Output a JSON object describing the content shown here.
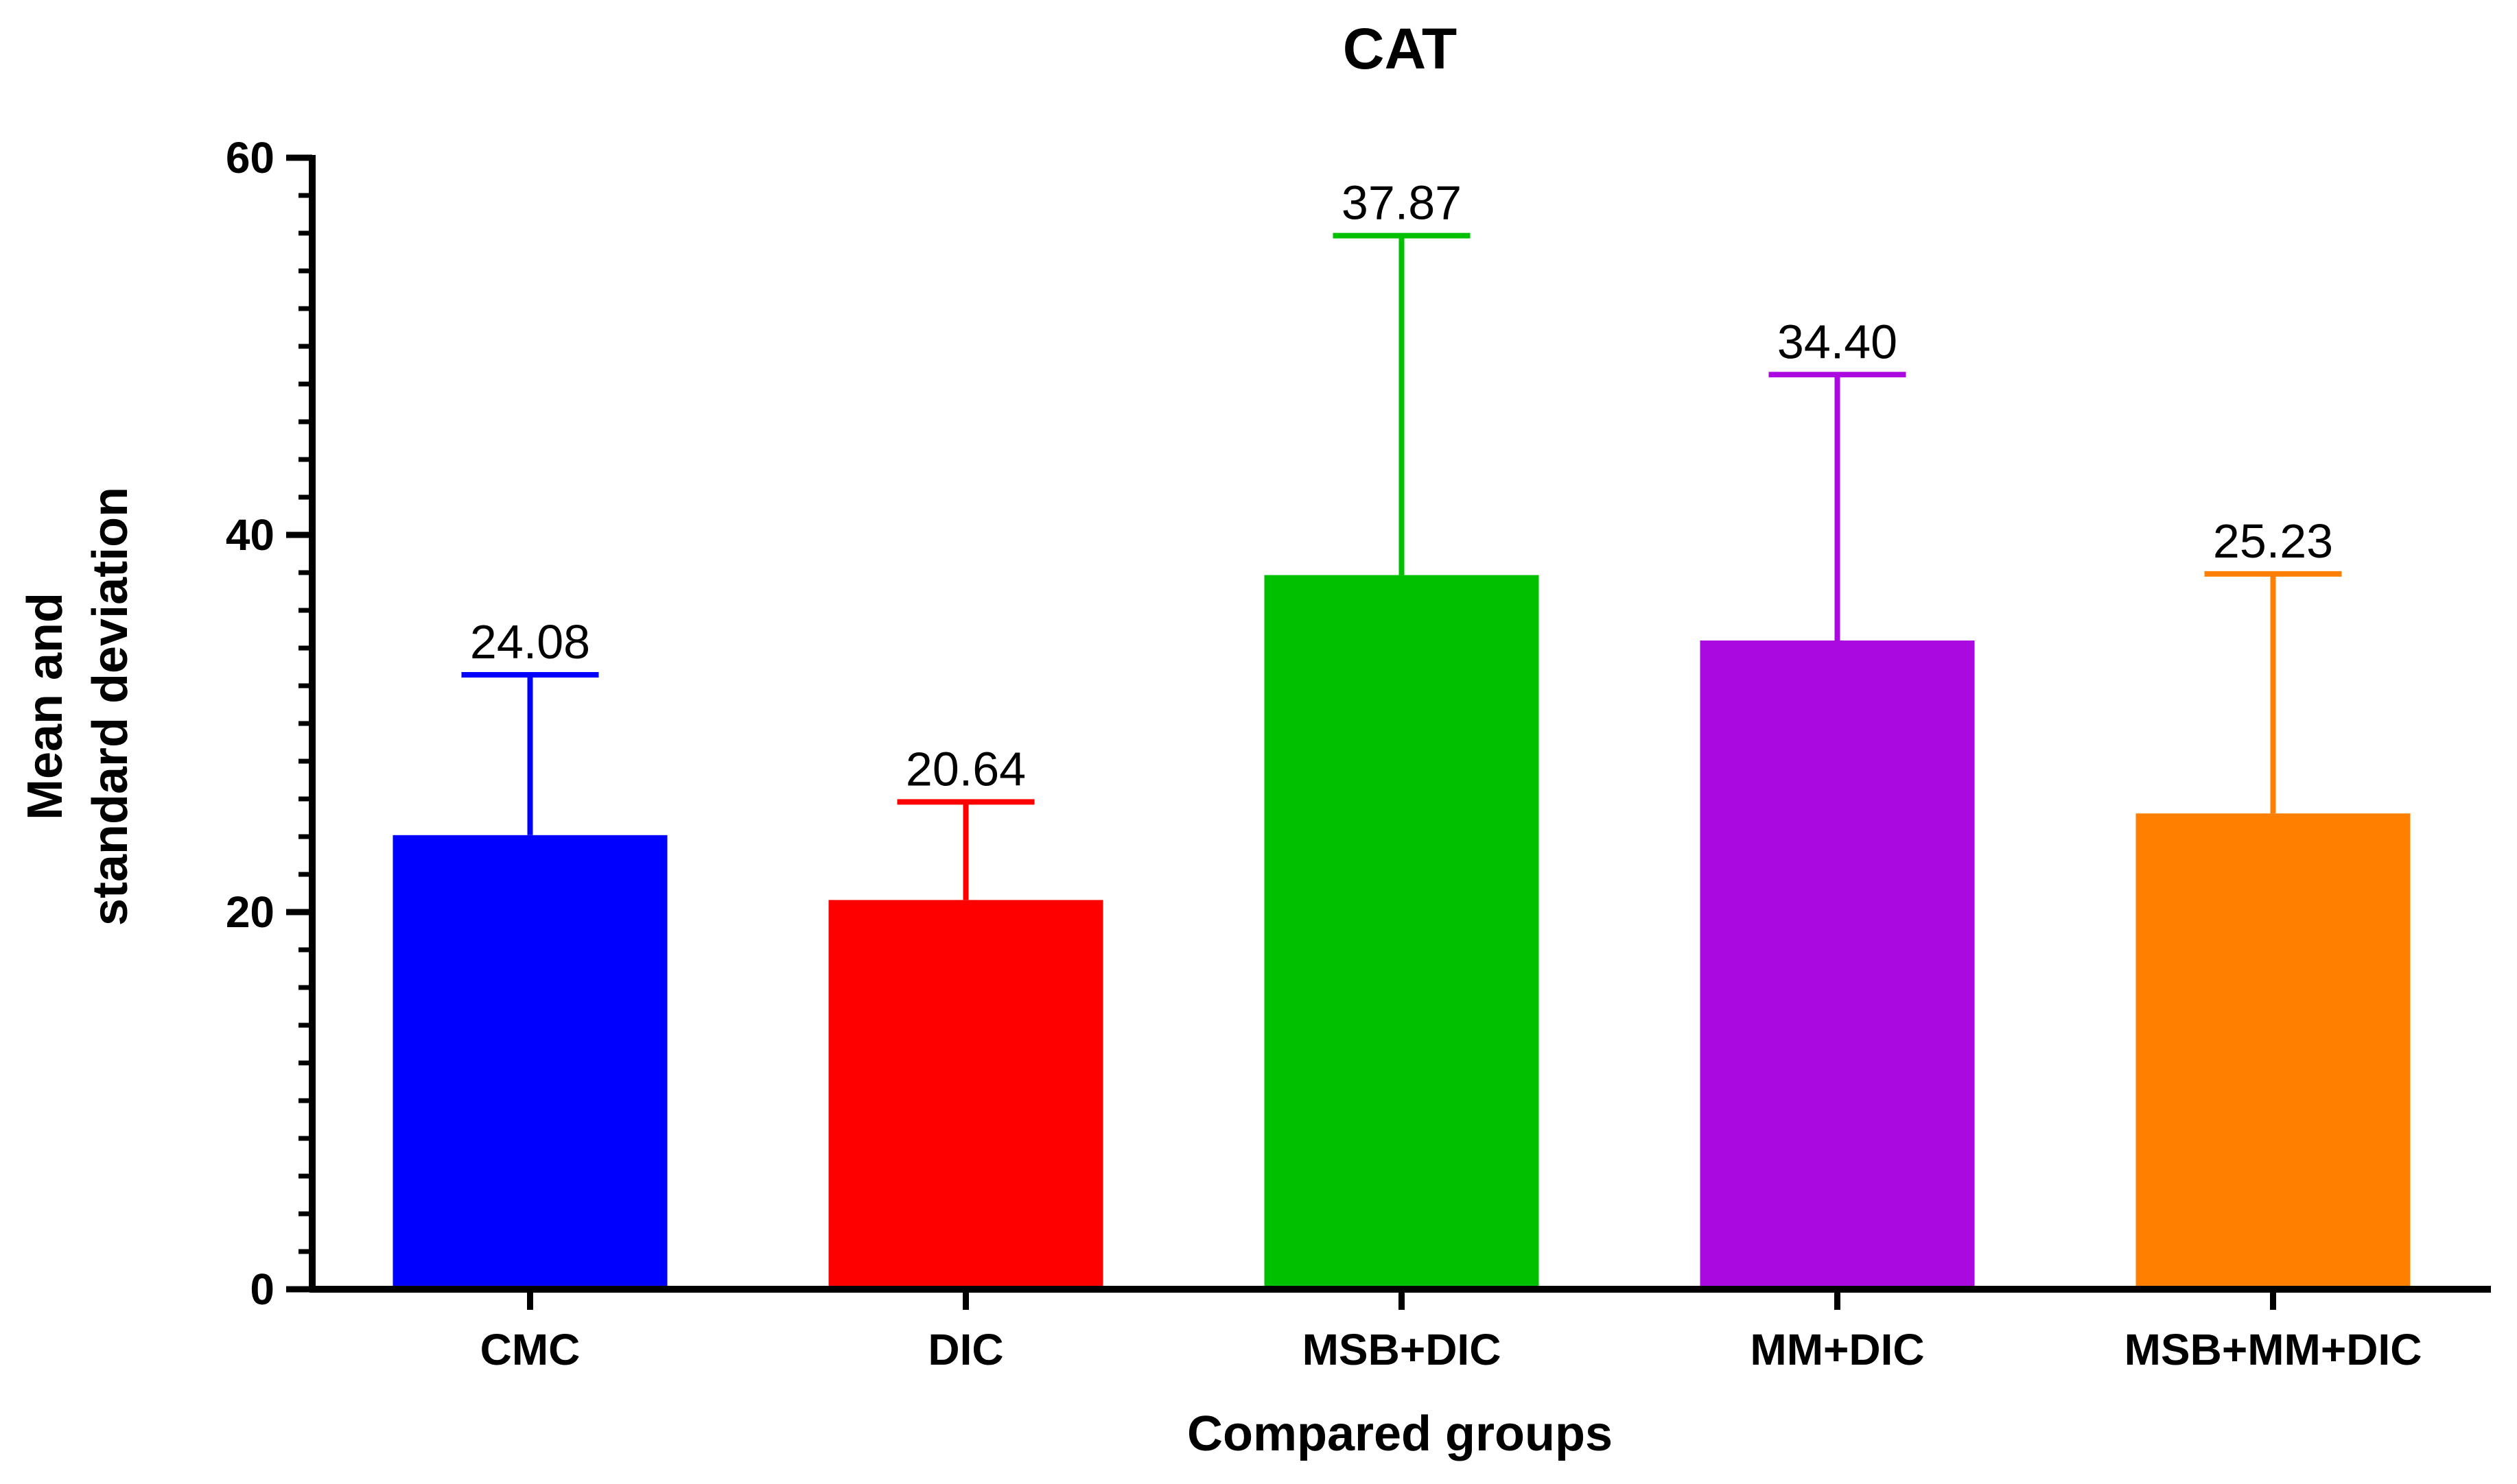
{
  "chart_data": {
    "type": "bar",
    "title": "CAT",
    "xlabel": "Compared groups",
    "ylabel_lines": [
      "Mean and",
      "standard deviation"
    ],
    "categories": [
      "CMC",
      "DIC",
      "MSB+DIC",
      "MM+DIC",
      "MSB+MM+DIC"
    ],
    "values": [
      24.08,
      20.64,
      37.87,
      34.4,
      25.23
    ],
    "value_labels": [
      "24.08",
      "20.64",
      "37.87",
      "34.40",
      "25.23"
    ],
    "sd": [
      8.5,
      5.2,
      18.0,
      14.1,
      12.7
    ],
    "colors": [
      "#0000ff",
      "#ff0000",
      "#00c000",
      "#aa0ae0",
      "#ff8000"
    ],
    "ylim": [
      0,
      60
    ],
    "yticks": [
      0,
      20,
      40,
      60
    ],
    "y_minor_step": 2,
    "grid": false,
    "error_bars": "upper"
  }
}
